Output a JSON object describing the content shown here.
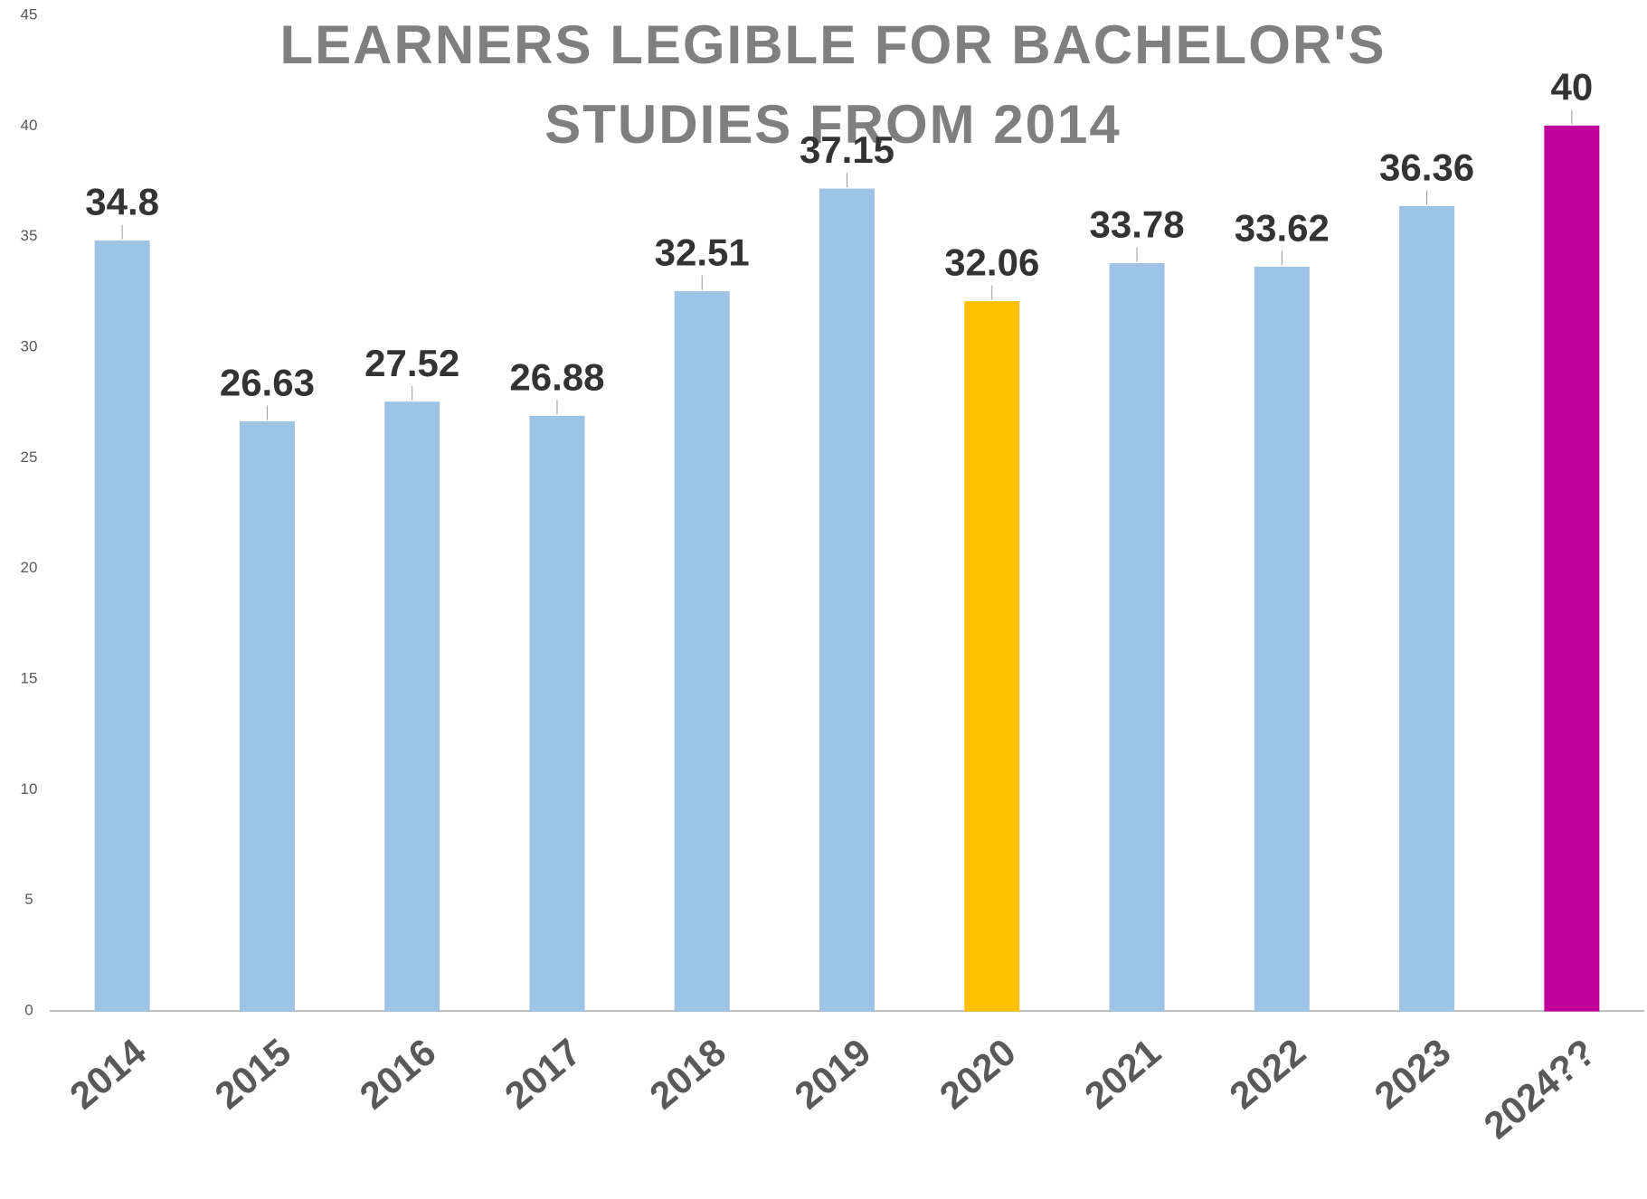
{
  "chart_data": {
    "type": "bar",
    "title": [
      "LEARNERS LEGIBLE FOR BACHELOR'S",
      "STUDIES FROM 2014"
    ],
    "categories": [
      "2014",
      "2015",
      "2016",
      "2017",
      "2018",
      "2019",
      "2020",
      "2021",
      "2022",
      "2023",
      "2024??"
    ],
    "values": [
      34.8,
      26.63,
      27.52,
      26.88,
      32.51,
      37.15,
      32.06,
      33.78,
      33.62,
      36.36,
      40
    ],
    "colors": [
      "#9dc3e6",
      "#9dc3e6",
      "#9dc3e6",
      "#9dc3e6",
      "#9dc3e6",
      "#9dc3e6",
      "#ffc000",
      "#9dc3e6",
      "#9dc3e6",
      "#9dc3e6",
      "#c0009a"
    ],
    "ylim": [
      0,
      45
    ],
    "yticks": [
      0,
      5,
      10,
      15,
      20,
      25,
      30,
      35,
      40,
      45
    ],
    "grid": false
  }
}
